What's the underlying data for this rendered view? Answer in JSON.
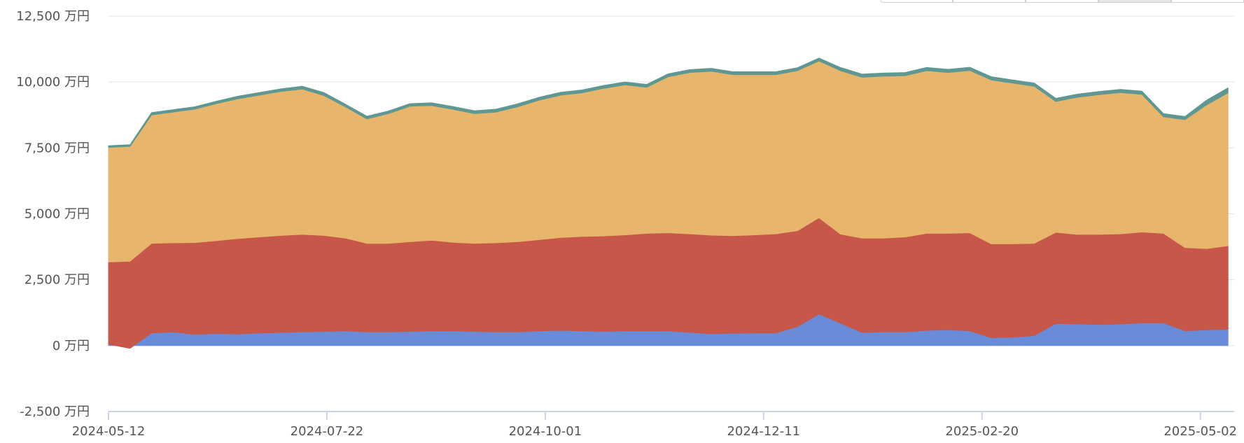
{
  "range_tabs": [
    {
      "label": "",
      "active": false
    },
    {
      "label": "",
      "active": false
    },
    {
      "label": "",
      "active": false
    },
    {
      "label": "",
      "active": true
    },
    {
      "label": "",
      "active": false
    }
  ],
  "chart_data": {
    "type": "area",
    "stacked": true,
    "title": "",
    "xlabel": "",
    "ylabel": "",
    "ylim": [
      -2500,
      12500
    ],
    "y_unit_suffix": " 万円",
    "y_ticks": [
      -2500,
      0,
      2500,
      5000,
      7500,
      10000,
      12500
    ],
    "y_tick_labels": [
      "-2,500 万円",
      "0 万円",
      "2,500 万円",
      "5,000 万円",
      "7,500 万円",
      "10,000 万円",
      "12,500 万円"
    ],
    "x_start": "2024-05-12",
    "x_end": "2025-05-13",
    "x_ticks": [
      "2024-05-12",
      "2024-07-22",
      "2024-10-01",
      "2024-12-11",
      "2025-02-20",
      "2025-05-02"
    ],
    "grid": "horizontal",
    "legend": "none",
    "x": [
      "2024-05-12",
      "2024-05-19",
      "2024-05-26",
      "2024-06-02",
      "2024-06-09",
      "2024-06-16",
      "2024-06-23",
      "2024-06-30",
      "2024-07-07",
      "2024-07-14",
      "2024-07-21",
      "2024-07-28",
      "2024-08-04",
      "2024-08-11",
      "2024-08-18",
      "2024-08-25",
      "2024-09-01",
      "2024-09-08",
      "2024-09-15",
      "2024-09-22",
      "2024-09-29",
      "2024-10-06",
      "2024-10-13",
      "2024-10-20",
      "2024-10-27",
      "2024-11-03",
      "2024-11-10",
      "2024-11-17",
      "2024-11-24",
      "2024-12-01",
      "2024-12-08",
      "2024-12-15",
      "2024-12-22",
      "2024-12-29",
      "2025-01-05",
      "2025-01-12",
      "2025-01-19",
      "2025-01-26",
      "2025-02-02",
      "2025-02-09",
      "2025-02-16",
      "2025-02-23",
      "2025-03-02",
      "2025-03-09",
      "2025-03-16",
      "2025-03-23",
      "2025-03-30",
      "2025-04-06",
      "2025-04-13",
      "2025-04-20",
      "2025-04-27",
      "2025-05-04",
      "2025-05-11"
    ],
    "series": [
      {
        "name": "",
        "color": "#6a8bd8",
        "values": [
          50,
          -100,
          480,
          520,
          430,
          460,
          440,
          480,
          500,
          520,
          540,
          560,
          520,
          520,
          540,
          560,
          560,
          540,
          520,
          520,
          560,
          580,
          560,
          540,
          560,
          560,
          560,
          500,
          450,
          470,
          480,
          480,
          720,
          1200,
          850,
          500,
          520,
          520,
          580,
          600,
          560,
          300,
          320,
          380,
          840,
          820,
          800,
          820,
          860,
          860,
          560,
          600,
          620
        ]
      },
      {
        "name": "",
        "color": "#c65749",
        "values": [
          3120,
          3300,
          3400,
          3380,
          3480,
          3520,
          3620,
          3640,
          3680,
          3700,
          3640,
          3520,
          3360,
          3360,
          3400,
          3440,
          3360,
          3340,
          3380,
          3420,
          3460,
          3520,
          3580,
          3620,
          3640,
          3700,
          3720,
          3740,
          3740,
          3700,
          3720,
          3760,
          3640,
          3650,
          3380,
          3580,
          3560,
          3600,
          3680,
          3660,
          3720,
          3560,
          3540,
          3500,
          3460,
          3400,
          3420,
          3420,
          3450,
          3400,
          3160,
          3080,
          3170
        ]
      },
      {
        "name": "",
        "color": "#e8b56c",
        "values": [
          4350,
          4360,
          4870,
          4960,
          5060,
          5200,
          5300,
          5380,
          5460,
          5510,
          5310,
          4980,
          4720,
          4920,
          5140,
          5110,
          5040,
          4920,
          4960,
          5120,
          5290,
          5400,
          5450,
          5600,
          5690,
          5540,
          5920,
          6120,
          6220,
          6110,
          6080,
          6040,
          6070,
          5950,
          6200,
          6100,
          6140,
          6120,
          6170,
          6100,
          6160,
          6220,
          6100,
          5960,
          4960,
          5200,
          5300,
          5360,
          5220,
          4420,
          4850,
          5450,
          5800
        ]
      },
      {
        "name": "",
        "color": "#5f9792",
        "values": [
          60,
          60,
          90,
          90,
          90,
          90,
          100,
          100,
          100,
          110,
          110,
          100,
          100,
          100,
          100,
          100,
          110,
          110,
          110,
          110,
          110,
          110,
          110,
          110,
          110,
          110,
          110,
          110,
          110,
          110,
          110,
          110,
          110,
          110,
          120,
          120,
          120,
          120,
          120,
          120,
          120,
          120,
          120,
          120,
          120,
          120,
          120,
          120,
          120,
          120,
          120,
          180,
          190
        ]
      }
    ]
  }
}
